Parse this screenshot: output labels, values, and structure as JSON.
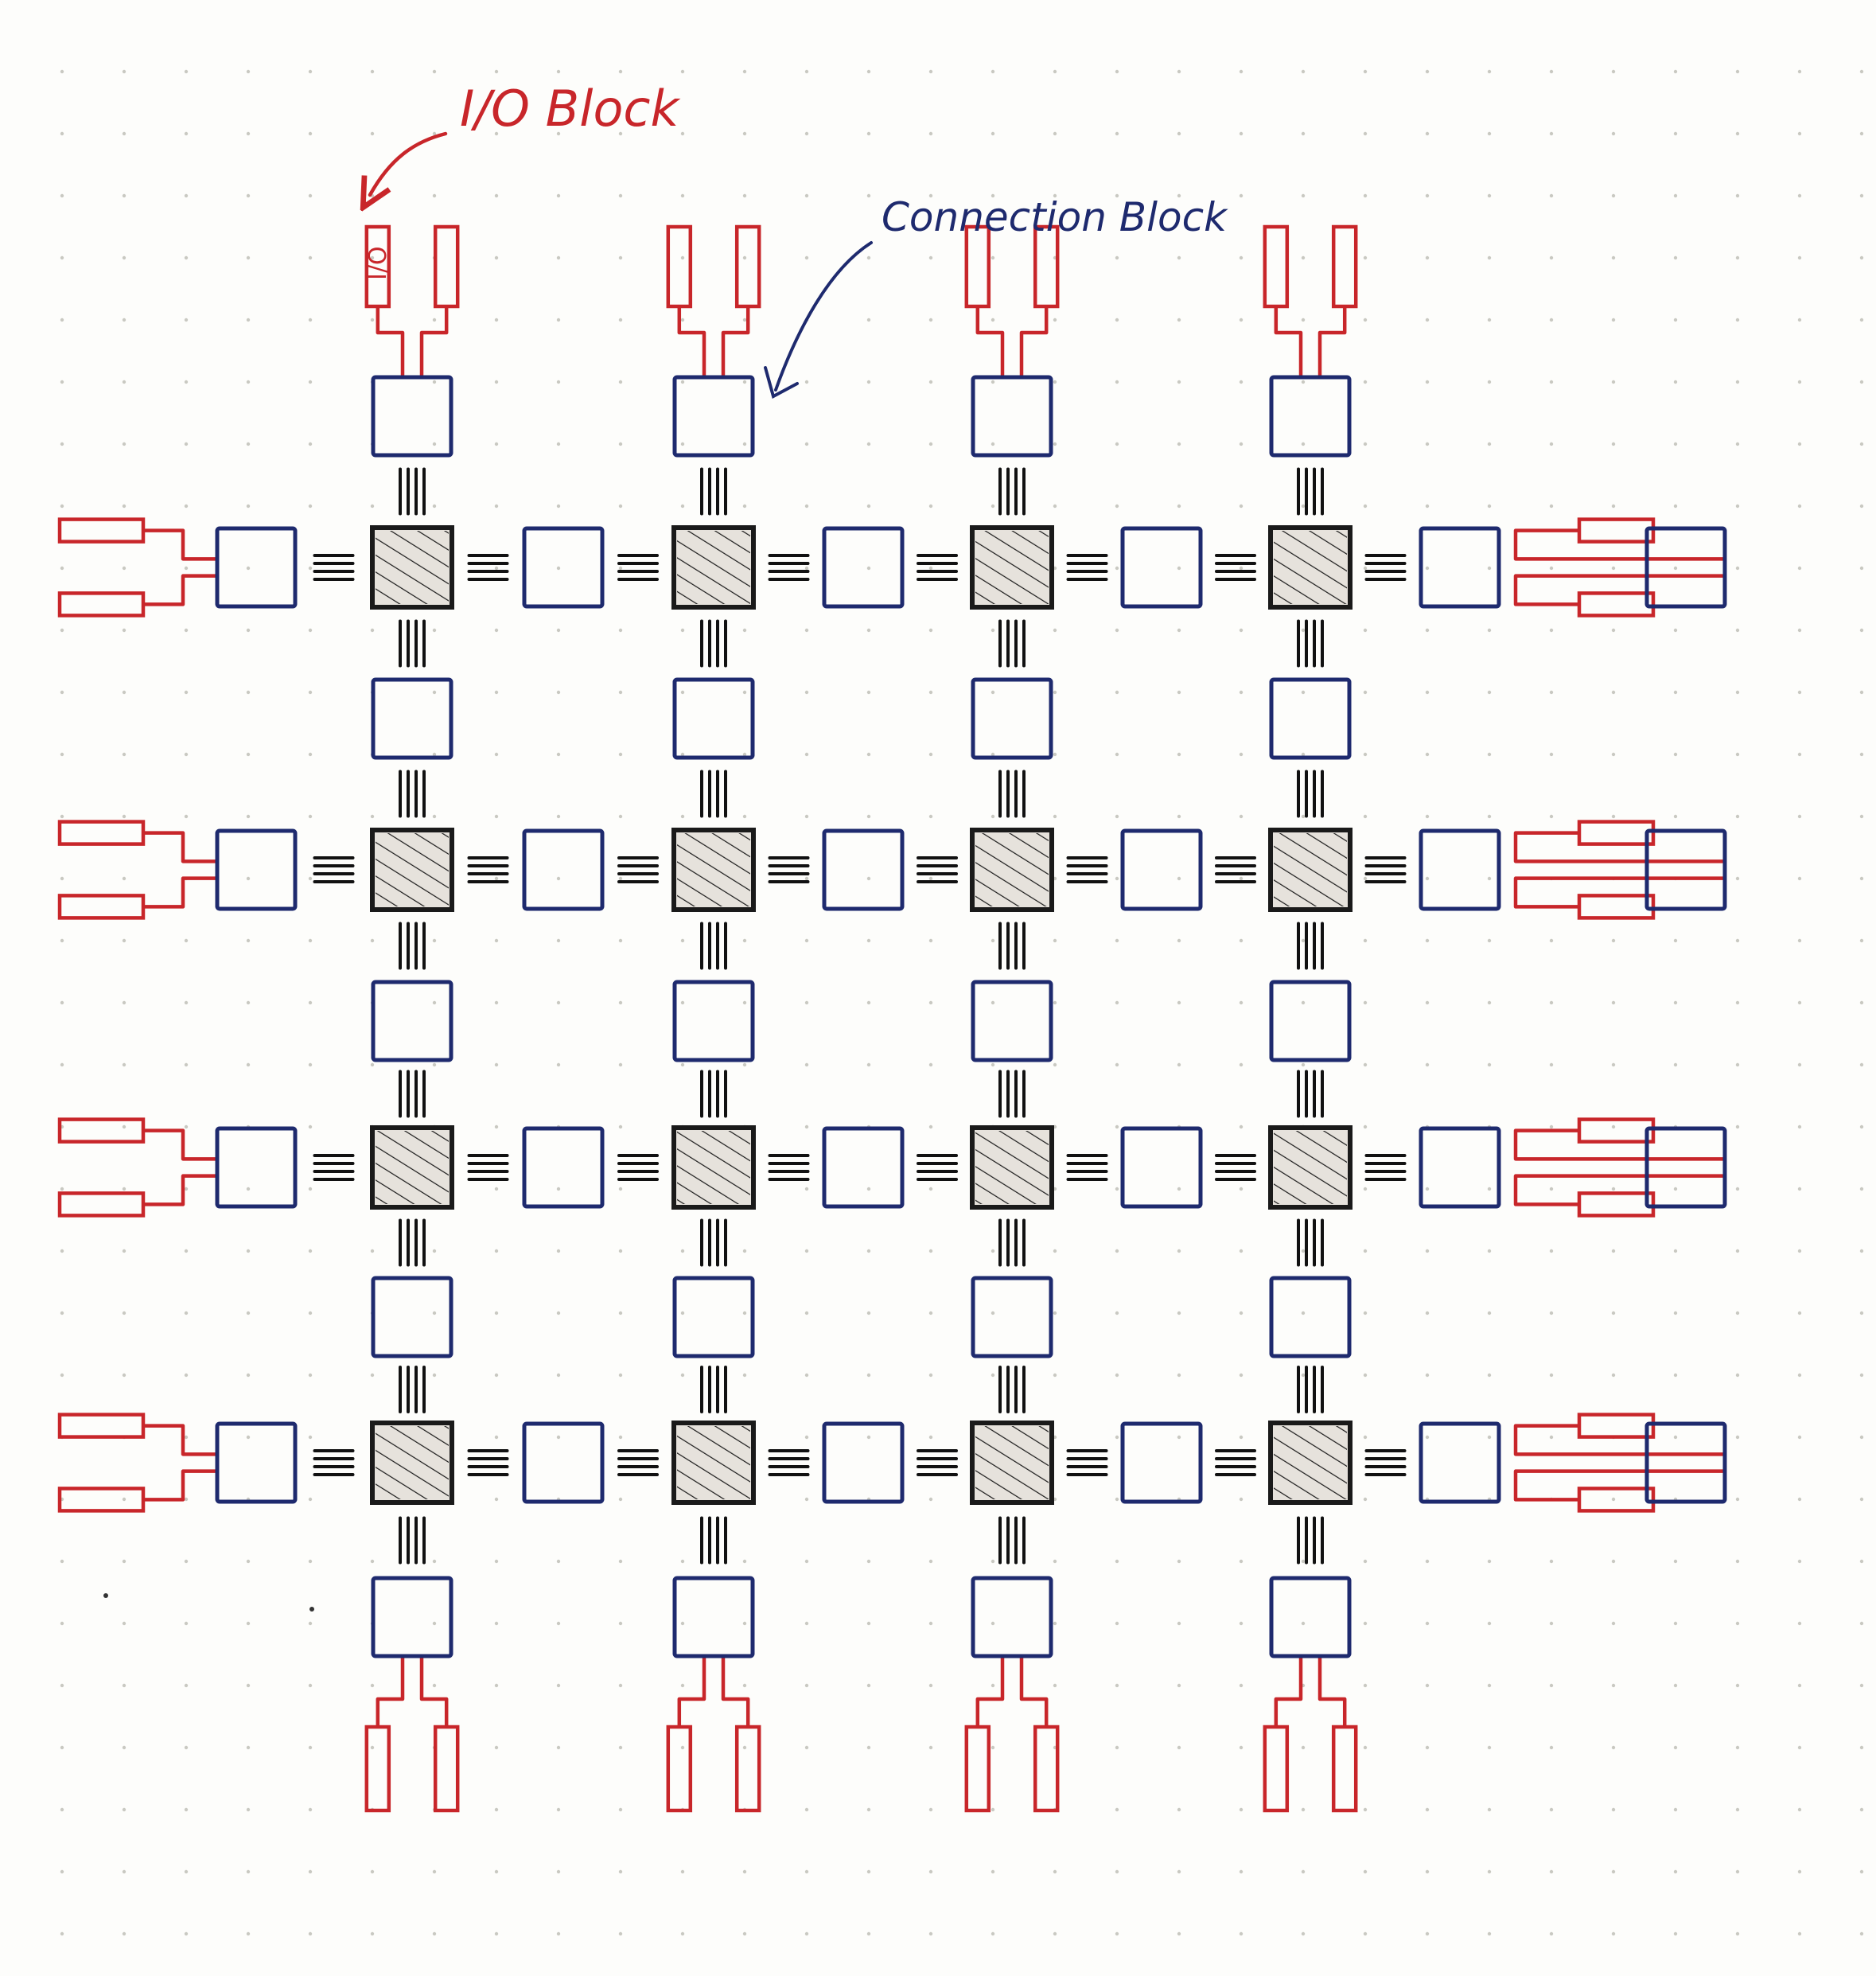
{
  "labels": {
    "io_block": "I/O Block",
    "connection_block": "Connection Block",
    "io_pad_text": "I/O"
  },
  "colors": {
    "background": "#fdfdfb",
    "dot_grid": "#c9c9c2",
    "io": "#c8262a",
    "connection": "#1e2a6e",
    "switch": "#1a1a1a",
    "switch_fill": "#e6e2dc",
    "wire": "#111111"
  },
  "grid": {
    "switch_block_columns": 4,
    "switch_block_rows": 4,
    "io_pads_per_side": 8
  }
}
